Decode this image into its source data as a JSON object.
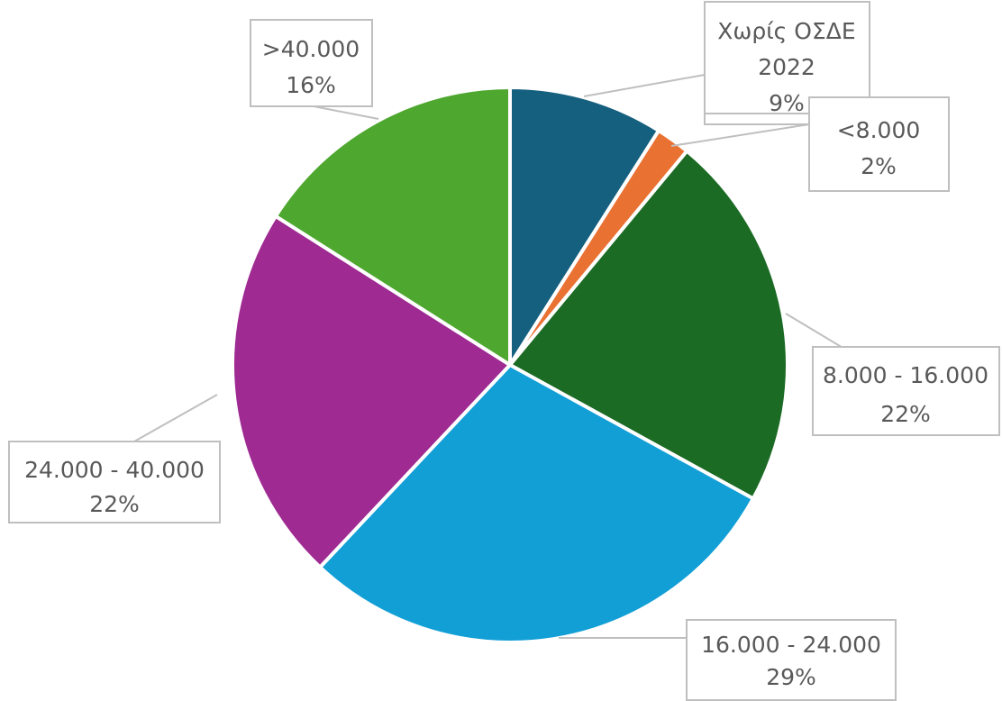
{
  "chart_data": {
    "type": "pie",
    "title": "",
    "legend": "none",
    "slices": [
      {
        "name": "Χωρίς ΟΣΔΕ 2022",
        "label_lines": [
          "Χωρίς ΟΣΔΕ",
          "2022"
        ],
        "percent_label": "9%",
        "value": 9,
        "color": "#16607f"
      },
      {
        "name": "<8.000",
        "label_lines": [
          "<8.000"
        ],
        "percent_label": "2%",
        "value": 2,
        "color": "#e97132"
      },
      {
        "name": "8.000 - 16.000",
        "label_lines": [
          "8.000 - 16.000"
        ],
        "percent_label": "22%",
        "value": 22,
        "color": "#1b6b24"
      },
      {
        "name": "16.000 - 24.000",
        "label_lines": [
          "16.000 - 24.000"
        ],
        "percent_label": "29%",
        "value": 29,
        "color": "#129fd6"
      },
      {
        "name": "24.000 - 40.000",
        "label_lines": [
          "24.000 - 40.000"
        ],
        "percent_label": "22%",
        "value": 22,
        "color": "#9e2a92"
      },
      {
        "name": ">40.000",
        "label_lines": [
          ">40.000"
        ],
        "percent_label": "16%",
        "value": 16,
        "color": "#4ea72e"
      }
    ]
  }
}
